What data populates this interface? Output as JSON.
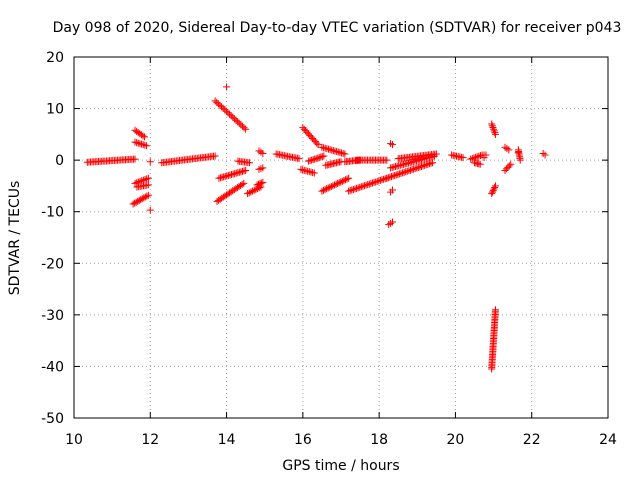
{
  "chart_data": {
    "type": "scatter",
    "title": "Day 098 of 2020, Sidereal Day-to-day VTEC variation (SDTVAR) for receiver p043",
    "xlabel": "GPS time / hours",
    "ylabel": "SDTVAR / TECUs",
    "xlim": [
      10,
      24
    ],
    "ylim": [
      -50,
      20
    ],
    "x_ticks": [
      10,
      12,
      14,
      16,
      18,
      20,
      22,
      24
    ],
    "y_ticks": [
      -50,
      -40,
      -30,
      -20,
      -10,
      0,
      10,
      20
    ],
    "x_tick_labels": [
      "10",
      "12",
      "14",
      "16",
      "18",
      "20",
      "22",
      "24"
    ],
    "y_tick_labels": [
      "-50",
      "-40",
      "-30",
      "-20",
      "-10",
      "0",
      "10",
      "20"
    ],
    "grid": true,
    "marker": "+",
    "series": [
      {
        "name": "SDTVAR",
        "color": "#ff0000",
        "segments": [
          {
            "x": [
              10.35,
              11.6
            ],
            "y": [
              -0.4,
              0.2
            ]
          },
          {
            "x": [
              11.6,
              11.85
            ],
            "y": [
              5.8,
              4.5
            ]
          },
          {
            "x": [
              11.6,
              11.9
            ],
            "y": [
              3.5,
              2.8
            ]
          },
          {
            "x": [
              11.55,
              11.95
            ],
            "y": [
              -8.5,
              -6.8
            ]
          },
          {
            "x": [
              11.6,
              11.95
            ],
            "y": [
              -4.5,
              -3.5
            ]
          },
          {
            "x": [
              11.65,
              11.95
            ],
            "y": [
              -5.2,
              -4.8
            ]
          },
          {
            "x": [
              12.3,
              13.7
            ],
            "y": [
              -0.5,
              0.8
            ]
          },
          {
            "x": [
              13.7,
              14.5
            ],
            "y": [
              11.5,
              6.0
            ]
          },
          {
            "x": [
              13.75,
              14.45
            ],
            "y": [
              -8.0,
              -4.5
            ]
          },
          {
            "x": [
              13.8,
              14.5
            ],
            "y": [
              -3.5,
              -2.0
            ]
          },
          {
            "x": [
              14.3,
              14.6
            ],
            "y": [
              -0.2,
              -0.5
            ]
          },
          {
            "x": [
              14.55,
              14.9
            ],
            "y": [
              -6.5,
              -5.2
            ]
          },
          {
            "x": [
              14.8,
              14.95
            ],
            "y": [
              -4.8,
              -4.3
            ]
          },
          {
            "x": [
              14.85,
              14.95
            ],
            "y": [
              -1.8,
              -1.5
            ]
          },
          {
            "x": [
              14.85,
              14.95
            ],
            "y": [
              1.8,
              1.3
            ]
          },
          {
            "x": [
              15.3,
              15.9
            ],
            "y": [
              1.2,
              0.3
            ]
          },
          {
            "x": [
              16.0,
              16.4
            ],
            "y": [
              6.3,
              3.0
            ]
          },
          {
            "x": [
              15.95,
              16.3
            ],
            "y": [
              -1.8,
              -2.5
            ]
          },
          {
            "x": [
              16.15,
              16.55
            ],
            "y": [
              -0.2,
              0.8
            ]
          },
          {
            "x": [
              16.5,
              17.1
            ],
            "y": [
              2.5,
              1.2
            ]
          },
          {
            "x": [
              16.6,
              17.0
            ],
            "y": [
              -1.0,
              -0.3
            ]
          },
          {
            "x": [
              16.5,
              17.2
            ],
            "y": [
              -6.0,
              -3.5
            ]
          },
          {
            "x": [
              17.1,
              17.5
            ],
            "y": [
              -0.3,
              0.0
            ]
          },
          {
            "x": [
              17.4,
              18.2
            ],
            "y": [
              0.0,
              0.0
            ]
          },
          {
            "x": [
              17.2,
              18.2
            ],
            "y": [
              -6.0,
              -3.5
            ]
          },
          {
            "x": [
              18.2,
              19.4
            ],
            "y": [
              -3.5,
              -0.5
            ]
          },
          {
            "x": [
              18.3,
              19.45
            ],
            "y": [
              -1.5,
              0.8
            ]
          },
          {
            "x": [
              18.5,
              19.5
            ],
            "y": [
              0.3,
              1.2
            ]
          },
          {
            "x": [
              18.25,
              18.35
            ],
            "y": [
              -12.5,
              -12.0
            ]
          },
          {
            "x": [
              18.3,
              18.35
            ],
            "y": [
              -6.2,
              -5.8
            ]
          },
          {
            "x": [
              18.3,
              18.35
            ],
            "y": [
              3.2,
              3.0
            ]
          },
          {
            "x": [
              19.9,
              20.2
            ],
            "y": [
              1.0,
              0.5
            ]
          },
          {
            "x": [
              20.4,
              20.7
            ],
            "y": [
              0.2,
              1.0
            ]
          },
          {
            "x": [
              20.5,
              20.65
            ],
            "y": [
              -0.5,
              -0.8
            ]
          },
          {
            "x": [
              20.95,
              21.05
            ],
            "y": [
              -40.5,
              -29.0
            ]
          },
          {
            "x": [
              20.95,
              21.05
            ],
            "y": [
              -6.5,
              -5.0
            ]
          },
          {
            "x": [
              20.95,
              21.05
            ],
            "y": [
              7.0,
              5.0
            ]
          },
          {
            "x": [
              21.3,
              21.4
            ],
            "y": [
              2.5,
              2.0
            ]
          },
          {
            "x": [
              21.3,
              21.45
            ],
            "y": [
              -2.0,
              -0.8
            ]
          },
          {
            "x": [
              21.65,
              21.7
            ],
            "y": [
              2.0,
              0.0
            ]
          },
          {
            "x": [
              22.3,
              22.35
            ],
            "y": [
              1.3,
              1.0
            ]
          },
          {
            "x": [
              20.75,
              20.8
            ],
            "y": [
              1.0,
              1.0
            ]
          }
        ],
        "points": [
          {
            "x": 12.0,
            "y": -9.7
          },
          {
            "x": 12.0,
            "y": -0.3
          },
          {
            "x": 14.0,
            "y": 14.2
          },
          {
            "x": 20.75,
            "y": 0.5
          },
          {
            "x": 21.65,
            "y": 1.5
          }
        ]
      }
    ]
  }
}
